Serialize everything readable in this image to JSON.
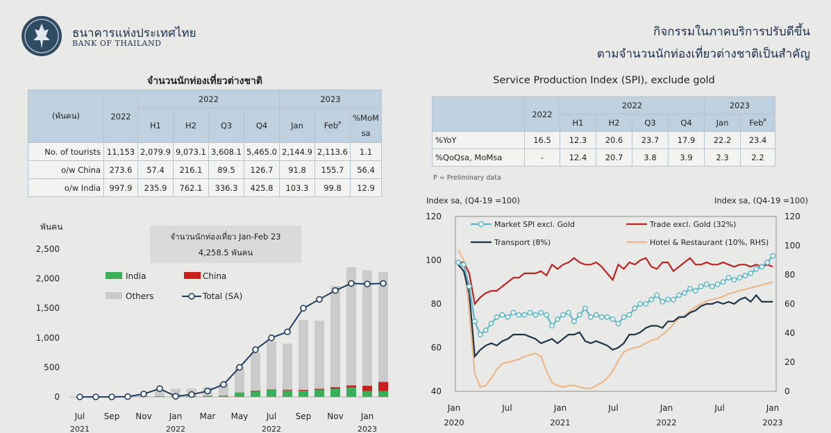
{
  "header": {
    "bank_name_th": "ธนาคารแห่งประเทศไทย",
    "bank_name_en": "BANK OF THAILAND",
    "headline_1": "กิจกรรมในภาคบริการปรับดีขึ้น",
    "headline_2": "ตามจำนวนนักท่องเที่ยวต่างชาติเป็นสำคัญ"
  },
  "tourist_table": {
    "title": "จำนวนนักท่องเที่ยวต่างชาติ",
    "unit": "(พันคน)",
    "col_2022": "2022",
    "group_2022": "2022",
    "group_2023": "2023",
    "sub_headers": [
      "H1",
      "H2",
      "Q3",
      "Q4",
      "Jan",
      "Feb",
      "%MoM sa"
    ],
    "feb_sup": "P",
    "rows": [
      {
        "label": "No. of tourists",
        "values": [
          "11,153",
          "2,079.9",
          "9,073.1",
          "3,608.1",
          "5,465.0",
          "2,144.9",
          "2,113.6",
          "1.1"
        ]
      },
      {
        "label": "o/w China",
        "values": [
          "273.6",
          "57.4",
          "216.1",
          "89.5",
          "126.7",
          "91.8",
          "155.7",
          "56.4"
        ]
      },
      {
        "label": "o/w India",
        "values": [
          "997.9",
          "235.9",
          "762.1",
          "336.3",
          "425.8",
          "103.3",
          "99.8",
          "12.9"
        ]
      }
    ]
  },
  "spi_table": {
    "title": "Service Production Index (SPI), exclude gold",
    "col_2022": "2022",
    "group_2022": "2022",
    "group_2023": "2023",
    "sub_headers": [
      "H1",
      "H2",
      "Q3",
      "Q4",
      "Jan",
      "Feb"
    ],
    "feb_sup": "P",
    "rows": [
      {
        "label": "%YoY",
        "values": [
          "16.5",
          "12.3",
          "20.6",
          "23.7",
          "17.9",
          "22.2",
          "23.4"
        ]
      },
      {
        "label": "%QoQsa, MoMsa",
        "values": [
          "-",
          "12.4",
          "20.7",
          "3.8",
          "3.9",
          "2.3",
          "2.2"
        ]
      }
    ],
    "note": "P = Preliminary data"
  },
  "chart_data": [
    {
      "type": "bar",
      "ylabel": "พันคน",
      "ylim": [
        0,
        2500
      ],
      "yticks": [
        "0",
        "500",
        "1,000",
        "1,500",
        "2,000",
        "2,500"
      ],
      "annotation_line1": "จำนวนนักท่องเที่ยว Jan-Feb 23",
      "annotation_line2": "4,258.5 พันคน",
      "categories": [
        "2021-07",
        "2021-08",
        "2021-09",
        "2021-10",
        "2021-11",
        "2021-12",
        "2022-01",
        "2022-02",
        "2022-03",
        "2022-04",
        "2022-05",
        "2022-06",
        "2022-07",
        "2022-08",
        "2022-09",
        "2022-10",
        "2022-11",
        "2022-12",
        "2023-01",
        "2023-02"
      ],
      "xtick_labels": [
        {
          "label": "Jul",
          "year": "2021"
        },
        {
          "label": "Sep",
          "year": ""
        },
        {
          "label": "Nov",
          "year": ""
        },
        {
          "label": "Jan",
          "year": "2022"
        },
        {
          "label": "Mar",
          "year": ""
        },
        {
          "label": "May",
          "year": ""
        },
        {
          "label": "Jul",
          "year": "2022"
        },
        {
          "label": "Sep",
          "year": ""
        },
        {
          "label": "Nov",
          "year": ""
        },
        {
          "label": "Jan",
          "year": "2023"
        }
      ],
      "series": [
        {
          "name": "India",
          "color": "#3aae5b",
          "values": [
            0,
            0,
            0,
            1,
            3,
            8,
            10,
            10,
            16,
            20,
            70,
            100,
            120,
            110,
            105,
            120,
            140,
            160,
            100,
            100
          ]
        },
        {
          "name": "China",
          "color": "#c8201c",
          "values": [
            0,
            0,
            0,
            1,
            2,
            3,
            3,
            2,
            2,
            3,
            5,
            6,
            8,
            12,
            15,
            18,
            25,
            35,
            90,
            155
          ]
        },
        {
          "name": "Others",
          "color": "#cbcbcb",
          "values": [
            0,
            0,
            0,
            3,
            15,
            100,
            125,
            130,
            140,
            210,
            430,
            640,
            810,
            780,
            1180,
            1150,
            1710,
            2000,
            1950,
            1860
          ]
        },
        {
          "name": "Total (SA)",
          "color": "#1f3d5c",
          "values": [
            0,
            0,
            0,
            5,
            50,
            140,
            10,
            40,
            100,
            210,
            500,
            800,
            1000,
            1100,
            1500,
            1650,
            1800,
            1920,
            1910,
            1920
          ]
        }
      ]
    },
    {
      "type": "line",
      "ylabel_left": "Index sa, (Q4-19 =100)",
      "ylabel_right": "Index sa, (Q4-19 =100)",
      "ylim_left": [
        40,
        120
      ],
      "ylim_right": [
        0,
        120
      ],
      "yticks_left": [
        "40",
        "60",
        "80",
        "100",
        "120"
      ],
      "yticks_right": [
        "0",
        "20",
        "40",
        "60",
        "80",
        "100",
        "120"
      ],
      "xtick_labels": [
        {
          "label": "Jan",
          "year": "2020"
        },
        {
          "label": "Jul",
          "year": ""
        },
        {
          "label": "Jan",
          "year": "2021"
        },
        {
          "label": "Jul",
          "year": ""
        },
        {
          "label": "Jan",
          "year": "2022"
        },
        {
          "label": "Jul",
          "year": ""
        },
        {
          "label": "Jan",
          "year": "2023"
        }
      ],
      "x_start": "2020-01",
      "series": [
        {
          "name": "Market SPI excl. Gold",
          "color": "#5bb6c6",
          "axis": "left",
          "marker": true,
          "values": [
            99,
            98,
            88,
            72,
            66,
            68,
            71,
            74,
            75,
            74,
            76,
            75,
            75,
            76,
            75,
            76,
            75,
            70,
            73,
            75,
            76,
            72,
            75,
            78,
            74,
            75,
            74,
            74,
            73,
            71,
            74,
            75,
            78,
            80,
            80,
            82,
            84,
            81,
            82,
            82,
            84,
            85,
            87,
            86,
            88,
            89,
            88,
            89,
            90,
            92,
            91,
            92,
            93,
            94,
            96,
            97,
            99,
            102
          ]
        },
        {
          "name": "Trade excl. Gold (32%)",
          "color": "#b92320",
          "axis": "left",
          "marker": false,
          "values": [
            99,
            99,
            94,
            80,
            83,
            85,
            86,
            86,
            88,
            90,
            92,
            92,
            94,
            94,
            94,
            95,
            93,
            98,
            96,
            98,
            99,
            101,
            99,
            98,
            98,
            99,
            97,
            94,
            91,
            98,
            96,
            99,
            98,
            100,
            101,
            97,
            96,
            99,
            99,
            95,
            97,
            99,
            101,
            98,
            98,
            99,
            98,
            98,
            99,
            98,
            97,
            98,
            98,
            97,
            98,
            97,
            98,
            97
          ]
        },
        {
          "name": "Transport (8%)",
          "color": "#1f3344",
          "axis": "left",
          "marker": false,
          "values": [
            98,
            95,
            85,
            56,
            59,
            61,
            62,
            61,
            63,
            64,
            66,
            66,
            66,
            65,
            64,
            62,
            63,
            64,
            62,
            64,
            66,
            66,
            67,
            63,
            62,
            63,
            62,
            61,
            59,
            60,
            62,
            66,
            66,
            67,
            69,
            70,
            70,
            69,
            72,
            72,
            74,
            74,
            76,
            77,
            79,
            80,
            80,
            81,
            80,
            81,
            80,
            82,
            83,
            81,
            84,
            81,
            81,
            81
          ]
        },
        {
          "name": "Hotel & Restaurant (10%, RHS)",
          "color": "#e9b78a",
          "axis": "right",
          "marker": false,
          "values": [
            97,
            90,
            55,
            12,
            3,
            4,
            9,
            15,
            19,
            20,
            21,
            22,
            24,
            25,
            26,
            24,
            14,
            6,
            4,
            3,
            4,
            4,
            3,
            2,
            2,
            4,
            6,
            9,
            14,
            21,
            27,
            29,
            30,
            31,
            33,
            35,
            36,
            39,
            42,
            46,
            50,
            52,
            55,
            58,
            60,
            62,
            63,
            64,
            65,
            67,
            68,
            69,
            70,
            71,
            72,
            73,
            74,
            75
          ]
        }
      ]
    }
  ]
}
